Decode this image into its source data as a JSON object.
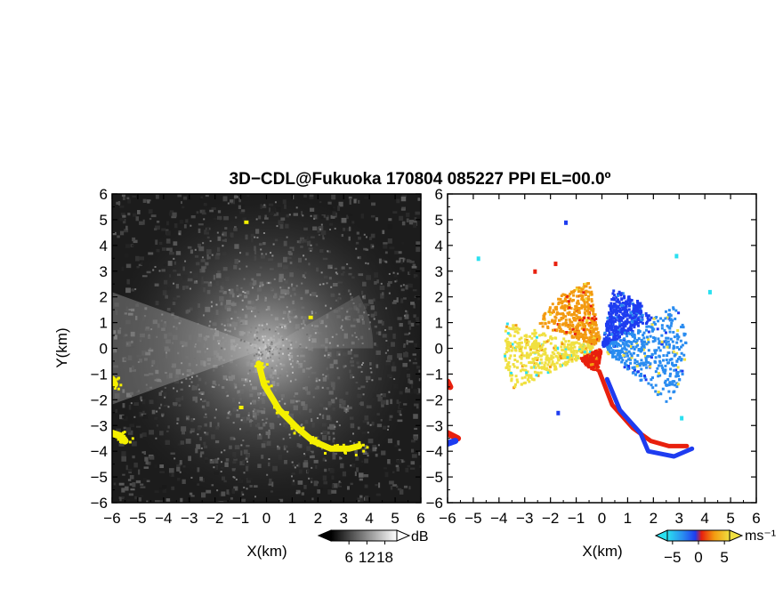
{
  "figure": {
    "title": "3D−CDL@Fukuoka 170804 085227 PPI EL=00.0º"
  },
  "chart_data": [
    {
      "type": "heatmap",
      "name": "reflectivity-ppi",
      "xlabel": "X(km)",
      "ylabel": "Y(km)",
      "xlim": [
        -6,
        6
      ],
      "ylim": [
        -6,
        6
      ],
      "xticks": [
        "−6",
        "−5",
        "−4",
        "−3",
        "−2",
        "−1",
        "0",
        "1",
        "2",
        "3",
        "4",
        "5",
        "6"
      ],
      "yticks": [
        "−6",
        "−5",
        "−4",
        "−3",
        "−2",
        "−1",
        "0",
        "1",
        "2",
        "3",
        "4",
        "5",
        "6"
      ],
      "colorbar": {
        "ticks": [
          "6",
          "12",
          "18"
        ],
        "unit": "dB",
        "range": [
          0,
          22
        ]
      },
      "colors": {
        "background": "#1c1c1c",
        "highlight": "#f5f000"
      },
      "features": [
        {
          "kind": "echo-band",
          "points": [
            [
              -0.3,
              -0.6
            ],
            [
              -0.1,
              -1.4
            ],
            [
              0.5,
              -2.4
            ],
            [
              1.2,
              -3.1
            ],
            [
              1.8,
              -3.6
            ],
            [
              2.5,
              -3.9
            ],
            [
              3.2,
              -3.9
            ],
            [
              3.6,
              -3.8
            ]
          ]
        },
        {
          "kind": "edge-echo",
          "points": [
            [
              -6.0,
              -3.3
            ],
            [
              -5.7,
              -3.4
            ],
            [
              -5.5,
              -3.6
            ]
          ]
        },
        {
          "kind": "edge-echo",
          "points": [
            [
              -6.0,
              -1.2
            ],
            [
              -5.9,
              -1.4
            ]
          ]
        },
        {
          "kind": "speck",
          "points": [
            [
              -0.8,
              4.9
            ],
            [
              1.7,
              1.2
            ],
            [
              -1.0,
              -2.3
            ]
          ]
        }
      ]
    },
    {
      "type": "heatmap",
      "name": "doppler-velocity-ppi",
      "xlabel": "X(km)",
      "xlim": [
        -6,
        6
      ],
      "ylim": [
        -6,
        6
      ],
      "xticks": [
        "−6",
        "−5",
        "−4",
        "−3",
        "−2",
        "−1",
        "0",
        "1",
        "2",
        "3",
        "4",
        "5",
        "6"
      ],
      "yticks": [
        "−6",
        "−5",
        "−4",
        "−3",
        "−2",
        "−1",
        "0",
        "1",
        "2",
        "3",
        "4",
        "5",
        "6"
      ],
      "colorbar": {
        "ticks": [
          "−5",
          "0",
          "5"
        ],
        "unit": "ms⁻¹",
        "range": [
          -6,
          6
        ]
      },
      "colors": {
        "strong_negative": "#1e3cf0",
        "negative": "#2a8cf0",
        "weak_negative": "#2ae0f0",
        "weak_positive": "#f0e040",
        "positive": "#f39a10",
        "strong_positive": "#e8200e"
      },
      "features": [
        {
          "kind": "sector",
          "velocity": -4,
          "from_deg": 30,
          "to_deg": 80,
          "radius_km": [
            0.1,
            2.3
          ]
        },
        {
          "kind": "sector",
          "velocity": -2,
          "from_deg": -40,
          "to_deg": 30,
          "radius_km": [
            0.2,
            3.3
          ]
        },
        {
          "kind": "sector",
          "velocity": 3,
          "from_deg": 100,
          "to_deg": 160,
          "radius_km": [
            0.3,
            2.6
          ]
        },
        {
          "kind": "sector",
          "velocity": 1.5,
          "from_deg": 165,
          "to_deg": 205,
          "radius_km": [
            0.3,
            3.8
          ]
        },
        {
          "kind": "sector",
          "velocity": 5,
          "from_deg": 205,
          "to_deg": 260,
          "radius_km": [
            0.1,
            0.9
          ]
        },
        {
          "kind": "echo-band",
          "velocity": 5,
          "points": [
            [
              -0.1,
              -0.9
            ],
            [
              0.4,
              -2.2
            ],
            [
              1.2,
              -3.1
            ],
            [
              1.9,
              -3.6
            ],
            [
              2.6,
              -3.8
            ],
            [
              3.3,
              -3.8
            ]
          ]
        },
        {
          "kind": "echo-band",
          "velocity": -5,
          "points": [
            [
              0.2,
              -1.2
            ],
            [
              0.7,
              -2.4
            ],
            [
              1.5,
              -3.3
            ],
            [
              1.8,
              -4.0
            ],
            [
              2.8,
              -4.2
            ],
            [
              3.5,
              -3.9
            ]
          ]
        },
        {
          "kind": "edge-echo",
          "velocity": 5,
          "points": [
            [
              -6.0,
              -3.3
            ],
            [
              -5.6,
              -3.5
            ]
          ]
        },
        {
          "kind": "edge-echo",
          "velocity": -5,
          "points": [
            [
              -6.0,
              -3.7
            ],
            [
              -5.7,
              -3.6
            ]
          ]
        },
        {
          "kind": "edge-echo",
          "velocity": 5,
          "points": [
            [
              -6.0,
              -1.3
            ],
            [
              -5.9,
              -1.5
            ]
          ]
        },
        {
          "kind": "speck",
          "velocity": -5,
          "points": [
            [
              -1.4,
              4.9
            ],
            [
              -1.7,
              -2.5
            ]
          ]
        },
        {
          "kind": "speck",
          "velocity": -1.5,
          "points": [
            [
              -4.8,
              3.5
            ],
            [
              4.2,
              2.2
            ],
            [
              2.9,
              3.6
            ],
            [
              3.1,
              -2.7
            ]
          ]
        },
        {
          "kind": "speck",
          "velocity": 5,
          "points": [
            [
              -1.8,
              3.3
            ],
            [
              -2.6,
              3.0
            ]
          ]
        }
      ]
    }
  ]
}
